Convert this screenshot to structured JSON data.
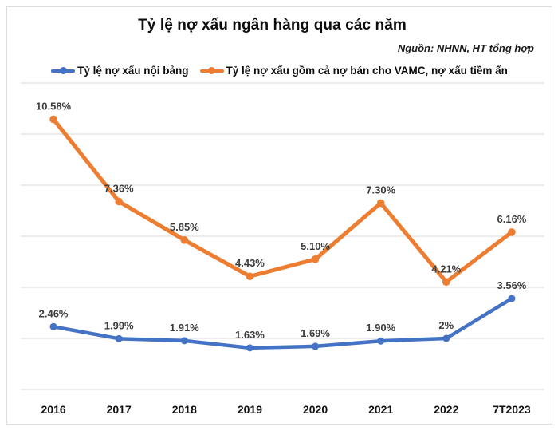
{
  "header": {
    "title": "Tỷ lệ nợ xấu ngân hàng qua các năm",
    "source": "Nguồn: NHNN, HT tổng hợp"
  },
  "chart_data": {
    "type": "line",
    "title": "Tỷ lệ nợ xấu ngân hàng qua các năm",
    "annotation": "Nguồn: NHNN, HT tổng hợp",
    "categories": [
      "2016",
      "2017",
      "2018",
      "2019",
      "2020",
      "2021",
      "2022",
      "7T2023"
    ],
    "series": [
      {
        "name": "Tỷ lệ nợ xấu nội bảng",
        "color": "#4472C4",
        "values": [
          2.46,
          1.99,
          1.91,
          1.63,
          1.69,
          1.9,
          2.0,
          3.56
        ],
        "labels": [
          "2.46%",
          "1.99%",
          "1.91%",
          "1.63%",
          "1.69%",
          "1.90%",
          "2%",
          "3.56%"
        ]
      },
      {
        "name": "Tỷ lệ nợ xấu gồm cả nợ bán cho VAMC, nợ xấu tiềm ẩn",
        "color": "#ED7D31",
        "values": [
          10.58,
          7.36,
          5.85,
          4.43,
          5.1,
          7.3,
          4.21,
          6.16
        ],
        "labels": [
          "10.58%",
          "7.36%",
          "5.85%",
          "4.43%",
          "5.10%",
          "7.30%",
          "4.21%",
          "6.16%"
        ]
      }
    ],
    "xlabel": "",
    "ylabel": "",
    "ylim": [
      0,
      12
    ],
    "grid": true,
    "grid_step": 2,
    "y_tick_labels_visible": false,
    "legend_position": "top",
    "data_labels": "above"
  },
  "style": {
    "grid_color": "#d9d9d9",
    "data_label_color": "#3d3d3d",
    "axis_label_color": "#111111",
    "border_color": "#dcdcdc",
    "background": "#ffffff"
  }
}
